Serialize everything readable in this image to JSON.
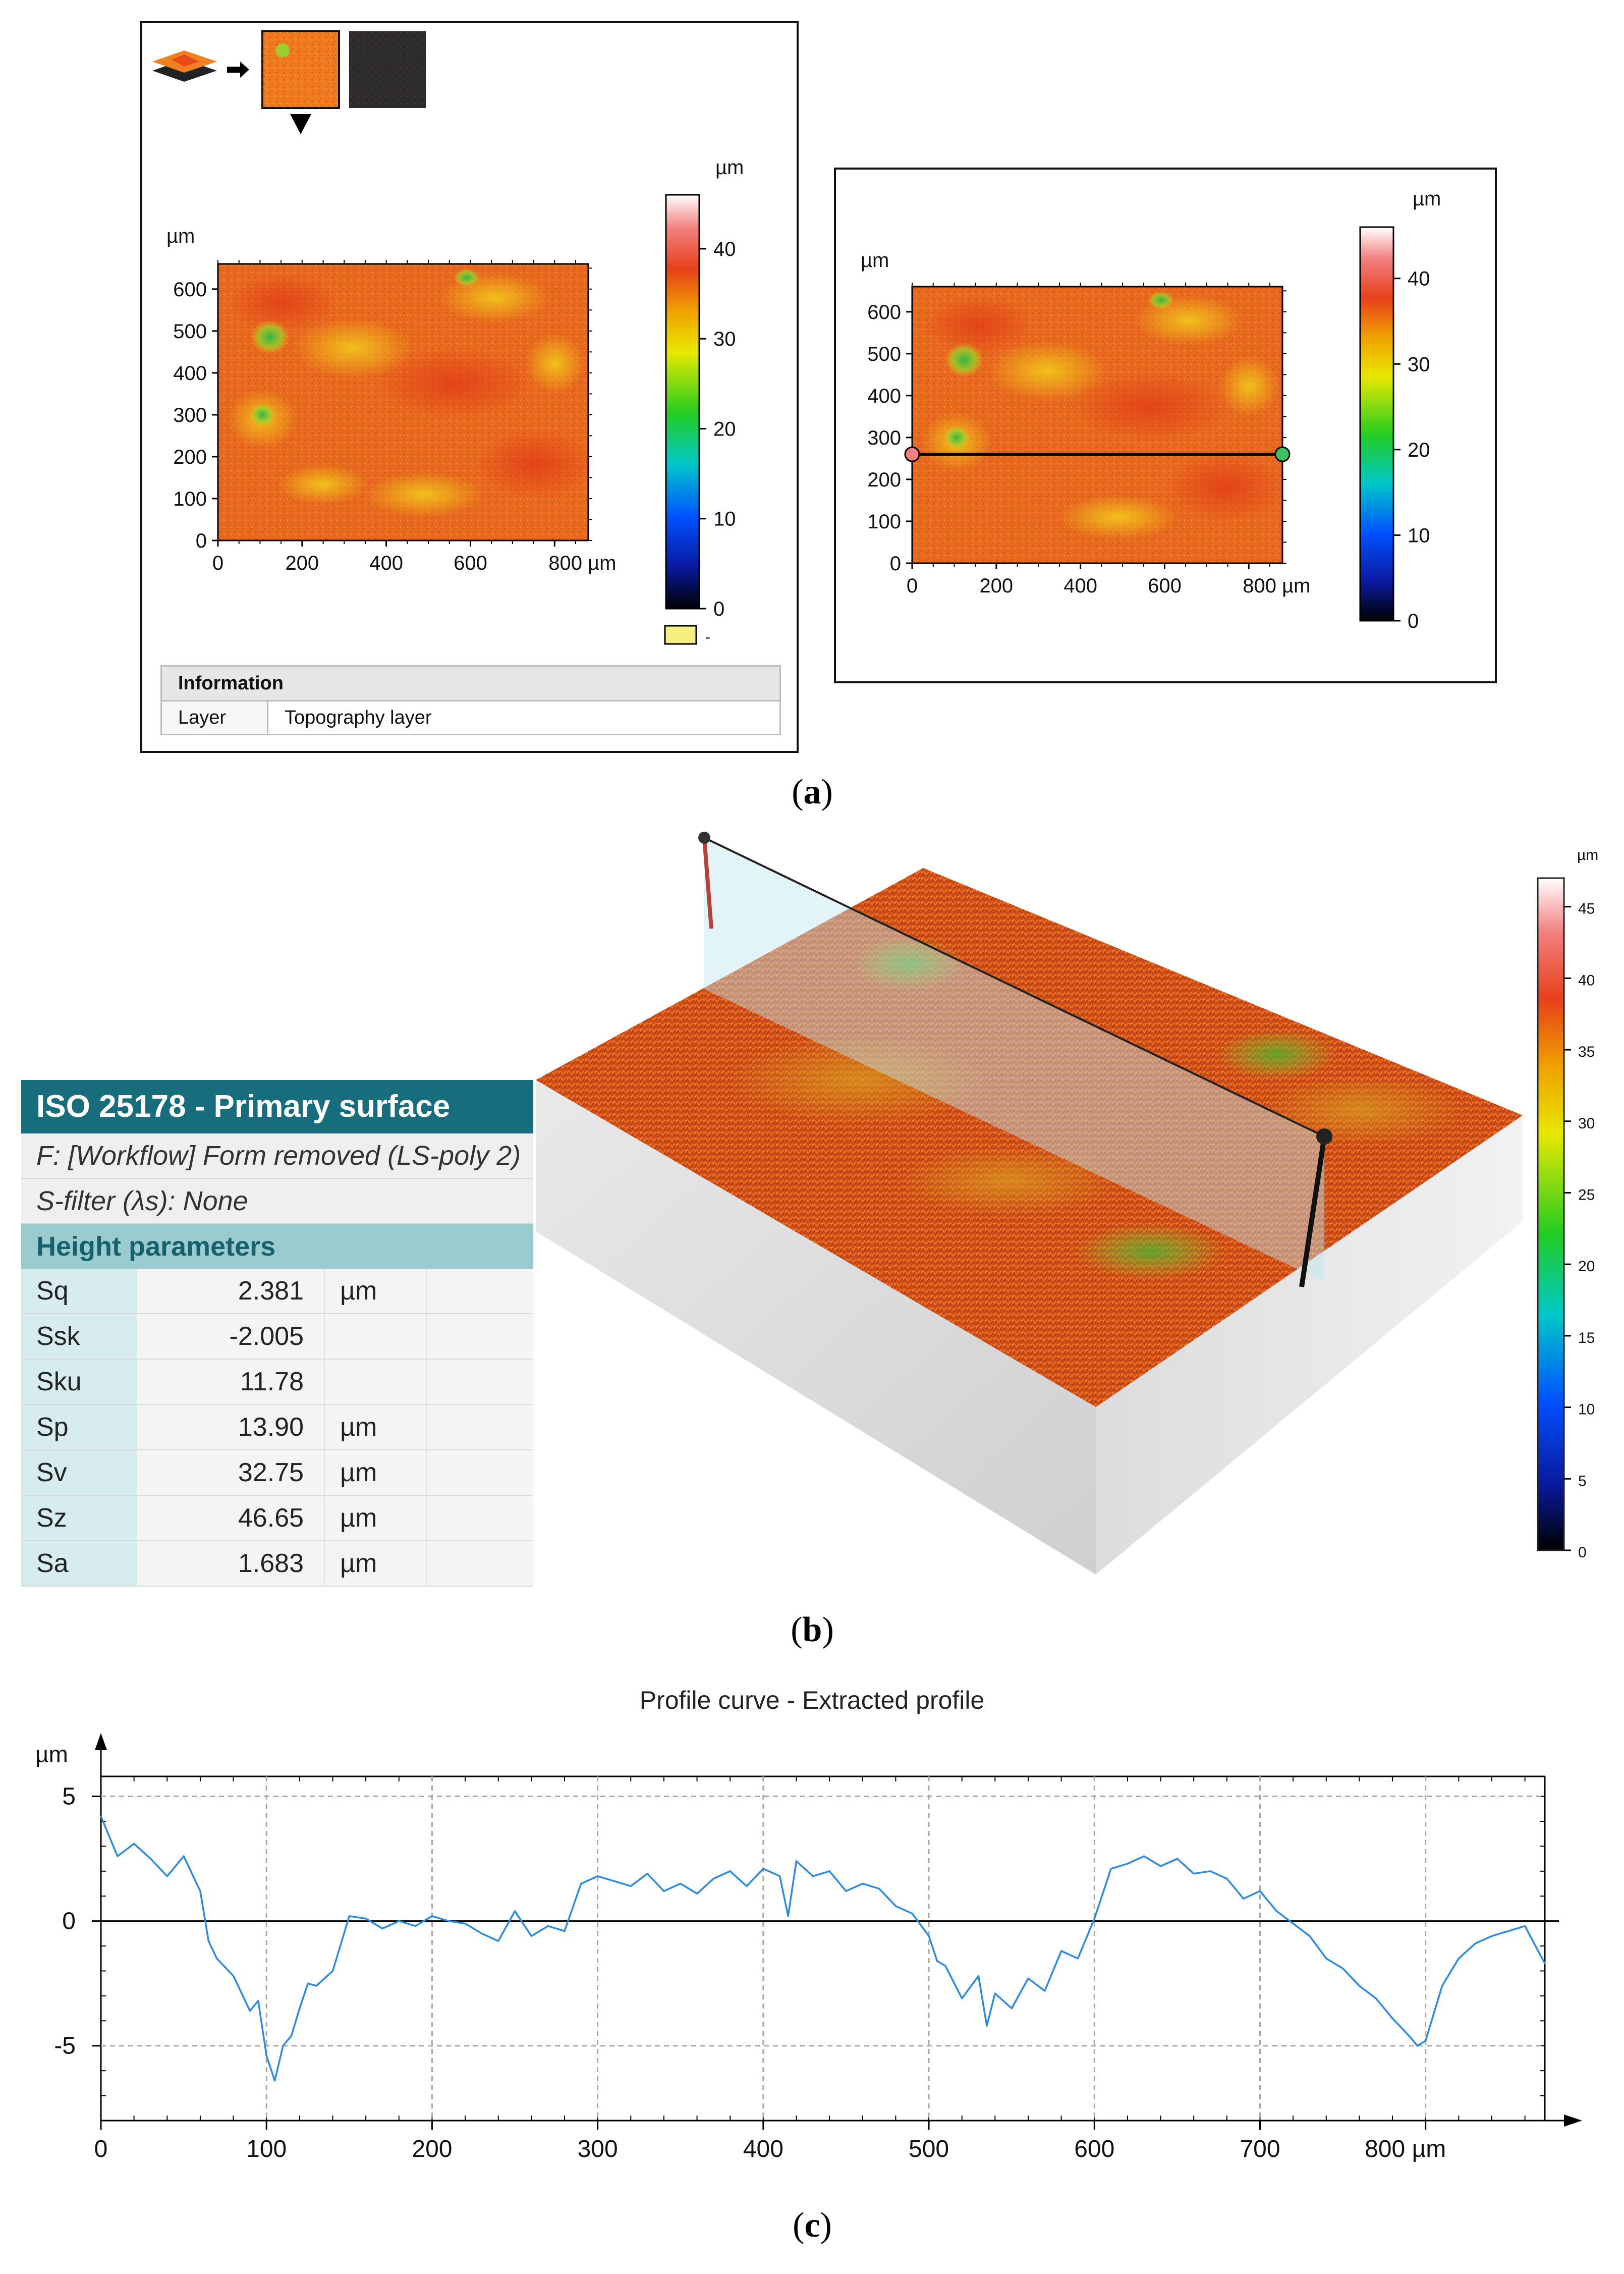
{
  "panel_a": {
    "unit": "µm",
    "left_map": {
      "x_ticks": [
        "0",
        "200",
        "400",
        "600",
        "800 µm"
      ],
      "y_ticks": [
        "0",
        "100",
        "200",
        "300",
        "400",
        "500",
        "600"
      ],
      "colorbar_ticks": [
        "0",
        "10",
        "20",
        "30",
        "40"
      ],
      "colorbar_min": 0,
      "colorbar_max": 46
    },
    "right_map": {
      "x_ticks": [
        "0",
        "200",
        "400",
        "600",
        "800 µm"
      ],
      "y_ticks": [
        "0",
        "100",
        "200",
        "300",
        "400",
        "500",
        "600"
      ],
      "colorbar_ticks": [
        "0",
        "10",
        "20",
        "30",
        "40"
      ],
      "profile_line_y": 260
    },
    "info_panel": {
      "header": "Information",
      "row_label": "Layer",
      "row_value": "Topography layer"
    },
    "legend_swatch_label": "-"
  },
  "panel_b": {
    "colorbar_unit": "µm",
    "colorbar_ticks": [
      "0",
      "5",
      "10",
      "15",
      "20",
      "25",
      "30",
      "35",
      "40",
      "45"
    ],
    "table": {
      "title": "ISO 25178 - Primary surface",
      "filter_f": "F: [Workflow] Form removed (LS-poly 2)",
      "filter_s": "S-filter (λs): None",
      "section": "Height parameters",
      "params": [
        {
          "name": "Sq",
          "value": "2.381",
          "unit": "µm"
        },
        {
          "name": "Ssk",
          "value": "-2.005",
          "unit": ""
        },
        {
          "name": "Sku",
          "value": "11.78",
          "unit": ""
        },
        {
          "name": "Sp",
          "value": "13.90",
          "unit": "µm"
        },
        {
          "name": "Sv",
          "value": "32.75",
          "unit": "µm"
        },
        {
          "name": "Sz",
          "value": "46.65",
          "unit": "µm"
        },
        {
          "name": "Sa",
          "value": "1.683",
          "unit": "µm"
        }
      ]
    }
  },
  "captions": {
    "a": "a",
    "b": "b",
    "c": "c"
  },
  "colors": {
    "profile_line": "#2a8ae6",
    "table_header": "#176d7c",
    "table_section": "#9acbcf",
    "surface_main": "#e0561c"
  },
  "chart_data": {
    "type": "line",
    "title": "Profile curve - Extracted profile",
    "xlabel": "",
    "ylabel": "µm",
    "xlim": [
      0,
      872
    ],
    "ylim": [
      -8,
      5.8
    ],
    "x_ticks": [
      "0",
      "100",
      "200",
      "300",
      "400",
      "500",
      "600",
      "700",
      "800 µm"
    ],
    "y_ticks": [
      "-5",
      "0",
      "5"
    ],
    "grid": true,
    "series": [
      {
        "x": [
          0,
          10,
          20,
          30,
          40,
          50,
          60,
          65,
          70,
          80,
          90,
          95,
          100,
          105,
          110,
          115,
          120,
          125,
          130,
          140,
          150,
          160,
          170,
          180,
          190,
          200,
          210,
          220,
          230,
          240,
          250,
          260,
          270,
          280,
          290,
          300,
          310,
          320,
          330,
          340,
          350,
          360,
          370,
          380,
          390,
          400,
          410,
          415,
          420,
          430,
          440,
          450,
          460,
          470,
          480,
          490,
          500,
          505,
          510,
          520,
          530,
          535,
          540,
          550,
          560,
          570,
          580,
          590,
          600,
          610,
          620,
          630,
          640,
          650,
          660,
          670,
          680,
          690,
          700,
          710,
          720,
          730,
          740,
          750,
          760,
          770,
          780,
          790,
          795,
          800,
          810,
          820,
          830,
          840,
          850,
          860,
          872
        ],
        "y": [
          4.2,
          2.6,
          3.1,
          2.5,
          1.8,
          2.6,
          1.2,
          -0.8,
          -1.5,
          -2.2,
          -3.6,
          -3.2,
          -5.4,
          -6.4,
          -5.0,
          -4.6,
          -3.5,
          -2.5,
          -2.6,
          -2.0,
          0.2,
          0.1,
          -0.3,
          0.0,
          -0.2,
          0.2,
          0.0,
          -0.1,
          -0.5,
          -0.8,
          0.4,
          -0.6,
          -0.2,
          -0.4,
          1.5,
          1.8,
          1.6,
          1.4,
          1.9,
          1.2,
          1.5,
          1.1,
          1.7,
          2.0,
          1.4,
          2.1,
          1.8,
          0.2,
          2.4,
          1.8,
          2.0,
          1.2,
          1.5,
          1.3,
          0.6,
          0.3,
          -0.6,
          -1.6,
          -1.8,
          -3.1,
          -2.2,
          -4.2,
          -2.9,
          -3.5,
          -2.3,
          -2.8,
          -1.2,
          -1.5,
          0.1,
          2.1,
          2.3,
          2.6,
          2.2,
          2.5,
          1.9,
          2.0,
          1.7,
          0.9,
          1.2,
          0.4,
          -0.1,
          -0.6,
          -1.5,
          -1.9,
          -2.6,
          -3.1,
          -3.9,
          -4.6,
          -5.0,
          -4.8,
          -2.6,
          -1.5,
          -0.9,
          -0.6,
          -0.4,
          -0.2,
          -1.7
        ]
      }
    ]
  }
}
